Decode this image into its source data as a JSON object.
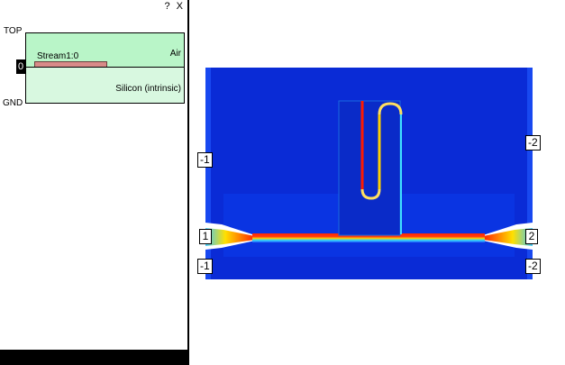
{
  "window_controls": {
    "help": "?",
    "close": "X"
  },
  "stack": {
    "top_label": "TOP",
    "gnd_label": "GND",
    "zero_label": "0",
    "layers": [
      {
        "name": "Air",
        "color": "#b9f5c8"
      },
      {
        "name": "Silicon (intrinsic)",
        "color": "#d8f8e0"
      }
    ],
    "stream_label": "Stream1:0",
    "stream_color": "#d88a88"
  },
  "ports": {
    "left_top": "-1",
    "left_mid": "1",
    "left_bottom": "-1",
    "right_top": "-2",
    "right_mid": "2",
    "right_bottom": "-2"
  }
}
